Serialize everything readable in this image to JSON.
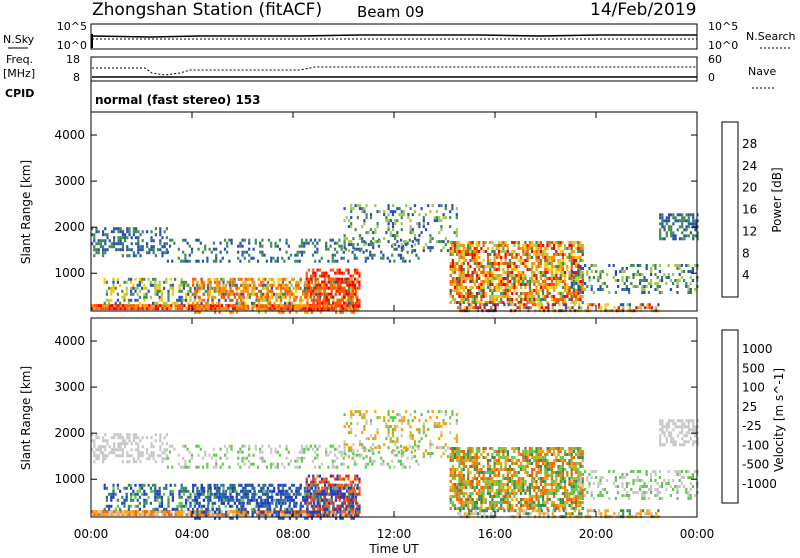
{
  "header": {
    "station": "Zhongshan Station (fitACF)",
    "beam": "Beam 09",
    "date": "14/Feb/2019"
  },
  "top_panels": {
    "nsky_label": "N.Sky",
    "nsky_ticks": [
      "10^5",
      "10^0"
    ],
    "nsearch_label": "N.Search",
    "nsearch_ticks": [
      "10^5",
      "10^0"
    ],
    "freq_label": "Freq.",
    "freq_unit": "[MHz]",
    "freq_ticks": [
      "18",
      "8"
    ],
    "nave_label": "Nave",
    "nave_ticks": [
      "60",
      "0"
    ],
    "cpid_label": "CPID",
    "cpid_text": "normal (fast stereo) 153"
  },
  "chart_data": [
    {
      "type": "heatmap",
      "name": "power",
      "ylabel": "Slant Range [km]",
      "yticks": [
        "4000",
        "3000",
        "2000",
        "1000"
      ],
      "ytick_values": [
        4000,
        3000,
        2000,
        1000
      ],
      "ylim": [
        180,
        4500
      ],
      "xlim_hours": [
        0,
        24
      ],
      "colorbar_label": "Power [dB]",
      "colorbar_ticks": [
        "28",
        "24",
        "20",
        "16",
        "12",
        "8",
        "4"
      ],
      "colorbar_colors": [
        "#ff0000",
        "#ff5a00",
        "#ff9600",
        "#ffc800",
        "#a0c850",
        "#3c8c50",
        "#2a50b4",
        "#0000ff"
      ]
    },
    {
      "type": "heatmap",
      "name": "velocity",
      "ylabel": "Slant Range [km]",
      "yticks": [
        "4000",
        "3000",
        "2000",
        "1000"
      ],
      "ytick_values": [
        4000,
        3000,
        2000,
        1000
      ],
      "ylim": [
        180,
        4500
      ],
      "xlim_hours": [
        0,
        24
      ],
      "colorbar_label": "Velocity [m s^-1]",
      "colorbar_ticks": [
        "1000",
        "500",
        "100",
        "25",
        "-25",
        "-100",
        "-500",
        "-1000"
      ],
      "colorbar_colors": [
        "#1e3cc8",
        "#2a64a0",
        "#3c8c50",
        "#64c850",
        "#c8c8c8",
        "#ffa000",
        "#ff6400",
        "#ff2800",
        "#ff0000"
      ]
    }
  ],
  "x_axis": {
    "ticks": [
      "00:00",
      "04:00",
      "08:00",
      "12:00",
      "16:00",
      "20:00",
      "00:00"
    ],
    "label": "Time UT"
  }
}
